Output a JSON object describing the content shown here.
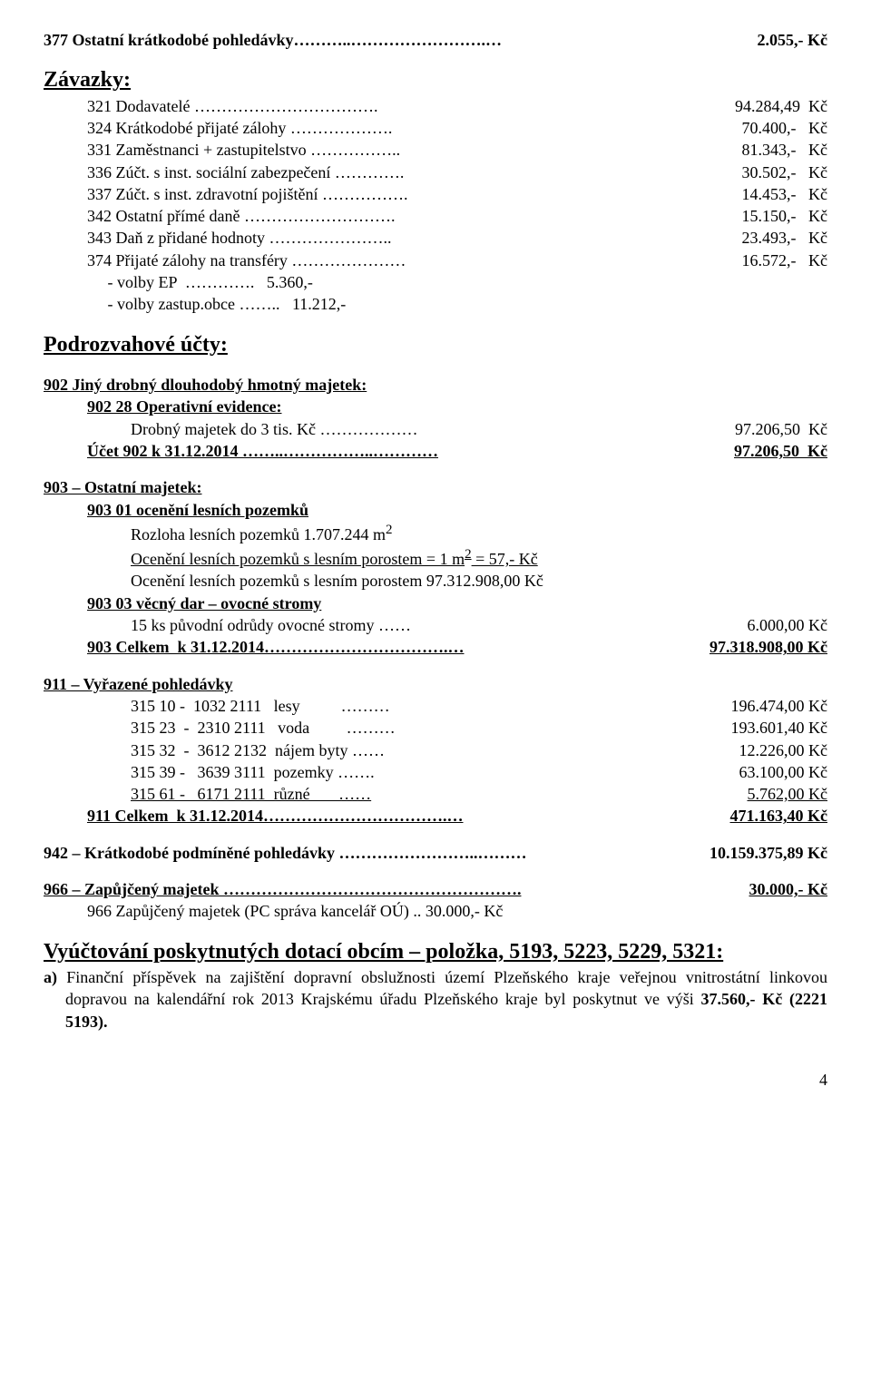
{
  "l377": {
    "label": "377 Ostatní krátkodobé pohledávky………..…………………….…",
    "val": "2.055,- Kč"
  },
  "zavazky": "Závazky:",
  "l321": {
    "label": "321 Dodavatelé …………………………….",
    "val": "94.284,49  Kč"
  },
  "l324": {
    "label": "324 Krátkodobé přijaté zálohy ……………….",
    "val": "70.400,-   Kč"
  },
  "l331": {
    "label": "331 Zaměstnanci + zastupitelstvo ……………..",
    "val": "81.343,-   Kč"
  },
  "l336": {
    "label": "336 Zúčt. s inst. sociální zabezpečení ………….",
    "val": "30.502,-   Kč"
  },
  "l337": {
    "label": "337 Zúčt. s inst. zdravotní pojištění …………….",
    "val": "14.453,-   Kč"
  },
  "l342": {
    "label": "342 Ostatní přímé daně ……………………….",
    "val": "15.150,-   Kč"
  },
  "l343": {
    "label": "343 Daň z přidané hodnoty …………………..",
    "val": "23.493,-   Kč"
  },
  "l374": {
    "label": "374 Přijaté zálohy na transféry …………………",
    "val": "16.572,-   Kč"
  },
  "lEP": {
    "label": "     - volby EP  ………….   5.360,-",
    "val": ""
  },
  "lObce": {
    "label": "     - volby zastup.obce ……..   11.212,-",
    "val": ""
  },
  "podroz": "Podrozvahové účty:",
  "h902a": "902 Jiný drobný dlouhodobý hmotný majetek:",
  "h902b": "902 28 Operativní evidence:",
  "l902c": {
    "label": "Drobný majetek do 3 tis. Kč ………………",
    "val": "97.206,50  Kč"
  },
  "l902d": {
    "label": "Účet 902 k 31.12.2014 ……..……………..…………",
    "val": "97.206,50  Kč"
  },
  "h903": "903 – Ostatní majetek:",
  "h903a": "903 01 ocenění lesních pozemků",
  "l903b": "Rozloha lesních pozemků  1.707.244 m",
  "l903b_sup": "2",
  "l903c_a": "Ocenění lesních pozemků s lesním porostem = 1 m",
  "l903c_sup": "2",
  "l903c_b": "  = 57,- Kč",
  "l903d": "Ocenění lesních pozemků s lesním porostem   97.312.908,00 Kč",
  "h903e": "903 03 věcný dar – ovocné stromy",
  "l903f": {
    "label": "15 ks původní odrůdy ovocné stromy ……",
    "val": "6.000,00 Kč"
  },
  "l903g": {
    "label": "903 Celkem  k 31.12.2014…………………………….…",
    "val": "97.318.908,00 Kč"
  },
  "h911": "911 – Vyřazené pohledávky",
  "l911a": {
    "label": "315 10 -  1032 2111   lesy          ………",
    "val": "196.474,00 Kč"
  },
  "l911b": {
    "label": "315 23  -  2310 2111   voda         ………",
    "val": "193.601,40 Kč"
  },
  "l911c": {
    "label": "315 32  -  3612 2132  nájem byty ……",
    "val": "12.226,00 Kč"
  },
  "l911d": {
    "label": "315 39 -   3639 3111  pozemky …….",
    "val": "63.100,00 Kč"
  },
  "l911e": {
    "label": "315 61 -   6171 2111  různé       ……",
    "val": "5.762,00 Kč"
  },
  "l911f": {
    "label": "911 Celkem  k 31.12.2014…………………………….…",
    "val": "471.163,40 Kč"
  },
  "l942": {
    "label": "942 – Krátkodobé podmíněné pohledávky ……………………..………",
    "val": "10.159.375,89 Kč"
  },
  "l966a": {
    "label": "966 – Zapůjčený majetek ……………………………………………….",
    "val": "30.000,- Kč"
  },
  "l966b": "966  Zapůjčený majetek (PC správa kancelář OÚ)  ..  30.000,- Kč",
  "hvyuc": "Vyúčtování poskytnutých dotací obcím – položka, 5193, 5223, 5229, 5321:",
  "para_a_pre": "a)  ",
  "para_a": "Finanční příspěvek na zajištění dopravní obslužnosti území Plzeňského kraje veřejnou vnitrostátní linkovou dopravou na kalendářní rok 2013 Krajskému úřadu Plzeňského kraje byl poskytnut ve výši  ",
  "para_a_bold": "37.560,- Kč (2221 5193).",
  "pagenum": "4"
}
